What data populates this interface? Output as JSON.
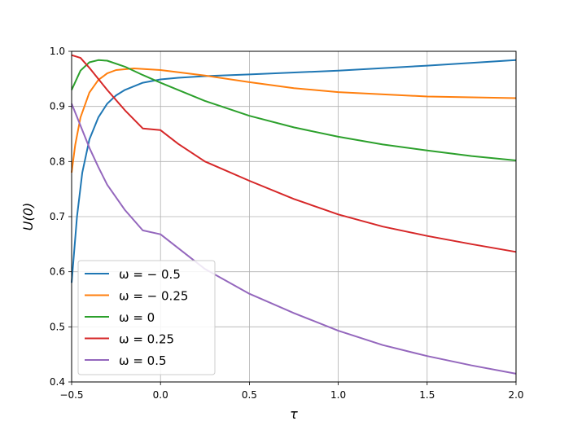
{
  "chart_data": {
    "type": "line",
    "xlabel": "τ",
    "ylabel": "U(0)",
    "xlim": [
      -0.5,
      2.0
    ],
    "ylim": [
      0.4,
      1.0
    ],
    "x_ticks": [
      -0.5,
      0.0,
      0.5,
      1.0,
      1.5,
      2.0
    ],
    "x_tick_labels": [
      "−0.5",
      "0.0",
      "0.5",
      "1.0",
      "1.5",
      "2.0"
    ],
    "y_ticks": [
      0.4,
      0.5,
      0.6,
      0.7,
      0.8,
      0.9,
      1.0
    ],
    "y_tick_labels": [
      "0.4",
      "0.5",
      "0.6",
      "0.7",
      "0.8",
      "0.9",
      "1.0"
    ],
    "grid": true,
    "legend_position": "lower-left",
    "series": [
      {
        "name": "ω = − 0.5",
        "color": "#1f77b4",
        "points": [
          [
            -0.5,
            0.58
          ],
          [
            -0.47,
            0.7
          ],
          [
            -0.44,
            0.78
          ],
          [
            -0.4,
            0.84
          ],
          [
            -0.35,
            0.88
          ],
          [
            -0.3,
            0.905
          ],
          [
            -0.25,
            0.92
          ],
          [
            -0.2,
            0.93
          ],
          [
            -0.1,
            0.943
          ],
          [
            0.0,
            0.949
          ],
          [
            0.1,
            0.952
          ],
          [
            0.25,
            0.955
          ],
          [
            0.5,
            0.958
          ],
          [
            1.0,
            0.965
          ],
          [
            1.5,
            0.974
          ],
          [
            2.0,
            0.984
          ]
        ]
      },
      {
        "name": "ω = − 0.25",
        "color": "#ff7f0e",
        "points": [
          [
            -0.5,
            0.78
          ],
          [
            -0.48,
            0.83
          ],
          [
            -0.45,
            0.88
          ],
          [
            -0.4,
            0.925
          ],
          [
            -0.35,
            0.948
          ],
          [
            -0.3,
            0.96
          ],
          [
            -0.25,
            0.966
          ],
          [
            -0.15,
            0.969
          ],
          [
            0.0,
            0.966
          ],
          [
            0.25,
            0.956
          ],
          [
            0.5,
            0.944
          ],
          [
            0.75,
            0.933
          ],
          [
            1.0,
            0.926
          ],
          [
            1.5,
            0.918
          ],
          [
            2.0,
            0.915
          ]
        ]
      },
      {
        "name": "ω = 0",
        "color": "#2ca02c",
        "points": [
          [
            -0.5,
            0.93
          ],
          [
            -0.45,
            0.965
          ],
          [
            -0.4,
            0.98
          ],
          [
            -0.35,
            0.984
          ],
          [
            -0.3,
            0.983
          ],
          [
            -0.2,
            0.972
          ],
          [
            -0.1,
            0.957
          ],
          [
            0.0,
            0.943
          ],
          [
            0.25,
            0.91
          ],
          [
            0.5,
            0.883
          ],
          [
            0.75,
            0.862
          ],
          [
            1.0,
            0.845
          ],
          [
            1.25,
            0.831
          ],
          [
            1.5,
            0.82
          ],
          [
            1.75,
            0.81
          ],
          [
            2.0,
            0.802
          ]
        ]
      },
      {
        "name": "ω = 0.25",
        "color": "#d62728",
        "points": [
          [
            -0.5,
            0.993
          ],
          [
            -0.45,
            0.988
          ],
          [
            -0.4,
            0.97
          ],
          [
            -0.3,
            0.93
          ],
          [
            -0.2,
            0.893
          ],
          [
            -0.1,
            0.86
          ],
          [
            0.0,
            0.857
          ],
          [
            0.1,
            0.832
          ],
          [
            0.25,
            0.8
          ],
          [
            0.5,
            0.765
          ],
          [
            0.75,
            0.732
          ],
          [
            1.0,
            0.704
          ],
          [
            1.25,
            0.682
          ],
          [
            1.5,
            0.665
          ],
          [
            1.75,
            0.65
          ],
          [
            2.0,
            0.636
          ]
        ]
      },
      {
        "name": "ω = 0.5",
        "color": "#9467bd",
        "points": [
          [
            -0.5,
            0.905
          ],
          [
            -0.45,
            0.865
          ],
          [
            -0.4,
            0.825
          ],
          [
            -0.35,
            0.79
          ],
          [
            -0.3,
            0.758
          ],
          [
            -0.2,
            0.712
          ],
          [
            -0.1,
            0.675
          ],
          [
            0.0,
            0.668
          ],
          [
            0.25,
            0.605
          ],
          [
            0.5,
            0.56
          ],
          [
            0.75,
            0.525
          ],
          [
            1.0,
            0.493
          ],
          [
            1.25,
            0.467
          ],
          [
            1.5,
            0.447
          ],
          [
            1.75,
            0.43
          ],
          [
            2.0,
            0.415
          ]
        ]
      }
    ]
  }
}
